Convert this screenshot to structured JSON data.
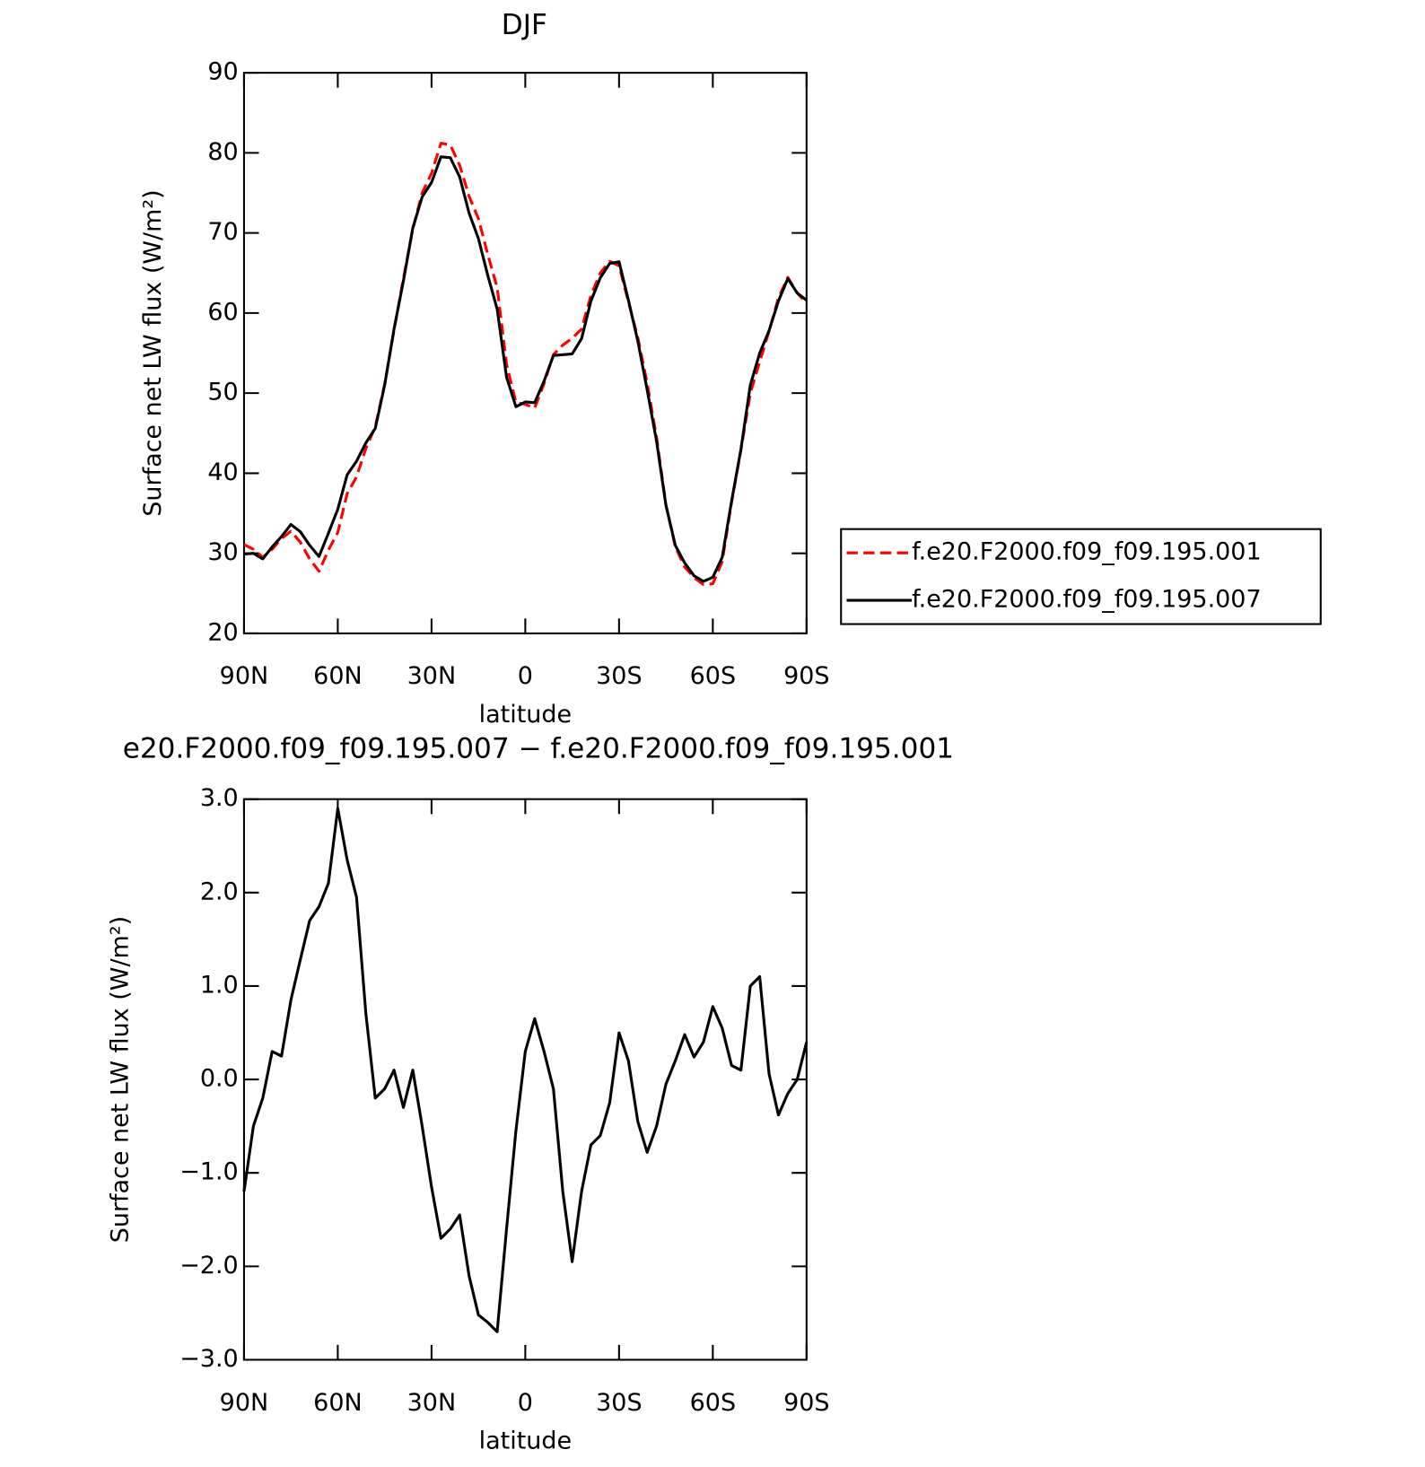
{
  "chart_data": [
    {
      "type": "line",
      "title": "DJF",
      "xlabel": "latitude",
      "ylabel": "Surface net LW flux (W/m²)",
      "x": [
        90,
        87,
        84,
        81,
        78,
        75,
        72,
        69,
        66,
        63,
        60,
        57,
        54,
        51,
        48,
        45,
        42,
        39,
        36,
        33,
        30,
        27,
        24,
        21,
        18,
        15,
        12,
        9,
        6,
        3,
        0,
        -3,
        -6,
        -9,
        -12,
        -15,
        -18,
        -21,
        -24,
        -27,
        -30,
        -33,
        -36,
        -39,
        -42,
        -45,
        -48,
        -51,
        -54,
        -57,
        -60,
        -63,
        -66,
        -69,
        -72,
        -75,
        -78,
        -81,
        -84,
        -87,
        -90
      ],
      "series": [
        {
          "name": "f.e20.F2000.f09_f09.195.001",
          "color": "#ff0000",
          "linestyle": "dashed",
          "values": [
            31.1,
            30.5,
            29.5,
            30.5,
            31.85,
            32.75,
            31.4,
            29.3,
            27.75,
            30.4,
            32.6,
            37.45,
            39.55,
            43.1,
            45.8,
            51.1,
            57.9,
            64.3,
            70.5,
            75,
            77.45,
            81.2,
            81,
            78.45,
            74.6,
            71.8,
            67.3,
            63.2,
            53.6,
            48.85,
            48.6,
            48.15,
            51.2,
            54.8,
            56,
            56.85,
            58,
            62.2,
            65,
            66.45,
            65.9,
            61.4,
            56.95,
            51.2,
            44.5,
            36.05,
            30.8,
            28.3,
            26.95,
            26.1,
            26.2,
            28.95,
            36.35,
            42.9,
            50,
            53.9,
            57.75,
            61.9,
            64.45,
            62.5,
            61.2
          ]
        },
        {
          "name": "f.e20.F2000.f09_f09.195.007",
          "color": "#000000",
          "linestyle": "solid",
          "values": [
            29.9,
            30,
            29.3,
            30.8,
            32.1,
            33.6,
            32.7,
            31,
            29.6,
            32.5,
            35.5,
            39.8,
            41.5,
            43.8,
            45.6,
            51,
            58,
            64,
            70.6,
            74.5,
            76.3,
            79.5,
            79.4,
            77,
            72.5,
            69.3,
            64.7,
            60.5,
            52,
            48.3,
            48.9,
            48.8,
            51.5,
            54.7,
            54.8,
            54.9,
            56.8,
            61.5,
            64.4,
            66.2,
            66.4,
            61.6,
            56.5,
            50.4,
            44,
            36,
            31,
            28.8,
            27.2,
            26.5,
            27,
            29.5,
            36.5,
            43,
            51,
            55,
            57.8,
            61.5,
            64.3,
            62.5,
            61.6
          ]
        }
      ],
      "xlim": [
        90,
        -90
      ],
      "xticks": [
        {
          "value": 90,
          "label": "90N"
        },
        {
          "value": 60,
          "label": "60N"
        },
        {
          "value": 30,
          "label": "30N"
        },
        0,
        {
          "value": -30,
          "label": "30S"
        },
        {
          "value": -60,
          "label": "60S"
        },
        {
          "value": -90,
          "label": "90S"
        }
      ],
      "ylim": [
        20,
        90
      ],
      "yticks": [
        20,
        30,
        40,
        50,
        60,
        70,
        80,
        90
      ],
      "legend": "right"
    },
    {
      "type": "line",
      "title": "e20.F2000.f09_f09.195.007 − f.e20.F2000.f09_f09.195.001",
      "xlabel": "latitude",
      "ylabel": "Surface net LW flux (W/m²)",
      "x": [
        90,
        87,
        84,
        81,
        78,
        75,
        72,
        69,
        66,
        63,
        60,
        57,
        54,
        51,
        48,
        45,
        42,
        39,
        36,
        33,
        30,
        27,
        24,
        21,
        18,
        15,
        12,
        9,
        6,
        3,
        0,
        -3,
        -6,
        -9,
        -12,
        -15,
        -18,
        -21,
        -24,
        -27,
        -30,
        -33,
        -36,
        -39,
        -42,
        -45,
        -48,
        -51,
        -54,
        -57,
        -60,
        -63,
        -66,
        -69,
        -72,
        -75,
        -78,
        -81,
        -84,
        -87,
        -90
      ],
      "values": [
        -1.2,
        -0.5,
        -0.2,
        0.3,
        0.25,
        0.85,
        1.28,
        1.7,
        1.85,
        2.1,
        2.9,
        2.35,
        1.95,
        0.7,
        -0.2,
        -0.1,
        0.1,
        -0.3,
        0.1,
        -0.5,
        -1.15,
        -1.7,
        -1.6,
        -1.45,
        -2.1,
        -2.52,
        -2.6,
        -2.7,
        -1.6,
        -0.55,
        0.3,
        0.65,
        0.3,
        -0.1,
        -1.2,
        -1.95,
        -1.2,
        -0.7,
        -0.6,
        -0.25,
        0.5,
        0.2,
        -0.45,
        -0.78,
        -0.5,
        -0.05,
        0.2,
        0.48,
        0.24,
        0.4,
        0.78,
        0.55,
        0.15,
        0.1,
        1,
        1.1,
        0.06,
        -0.38,
        -0.15,
        0,
        0.4
      ],
      "color": "#000000",
      "xlim": [
        90,
        -90
      ],
      "xticks": [
        {
          "value": 90,
          "label": "90N"
        },
        {
          "value": 60,
          "label": "60N"
        },
        {
          "value": 30,
          "label": "30N"
        },
        0,
        {
          "value": -30,
          "label": "30S"
        },
        {
          "value": -60,
          "label": "60S"
        },
        {
          "value": -90,
          "label": "90S"
        }
      ],
      "ylim": [
        -3,
        3
      ],
      "yticks": [
        {
          "value": -3,
          "label": "−3.0"
        },
        {
          "value": -2,
          "label": "−2.0"
        },
        {
          "value": -1,
          "label": "−1.0"
        },
        {
          "value": 0,
          "label": "0.0"
        },
        {
          "value": 1,
          "label": "1.0"
        },
        {
          "value": 2,
          "label": "2.0"
        },
        {
          "value": 3,
          "label": "3.0"
        }
      ]
    }
  ]
}
